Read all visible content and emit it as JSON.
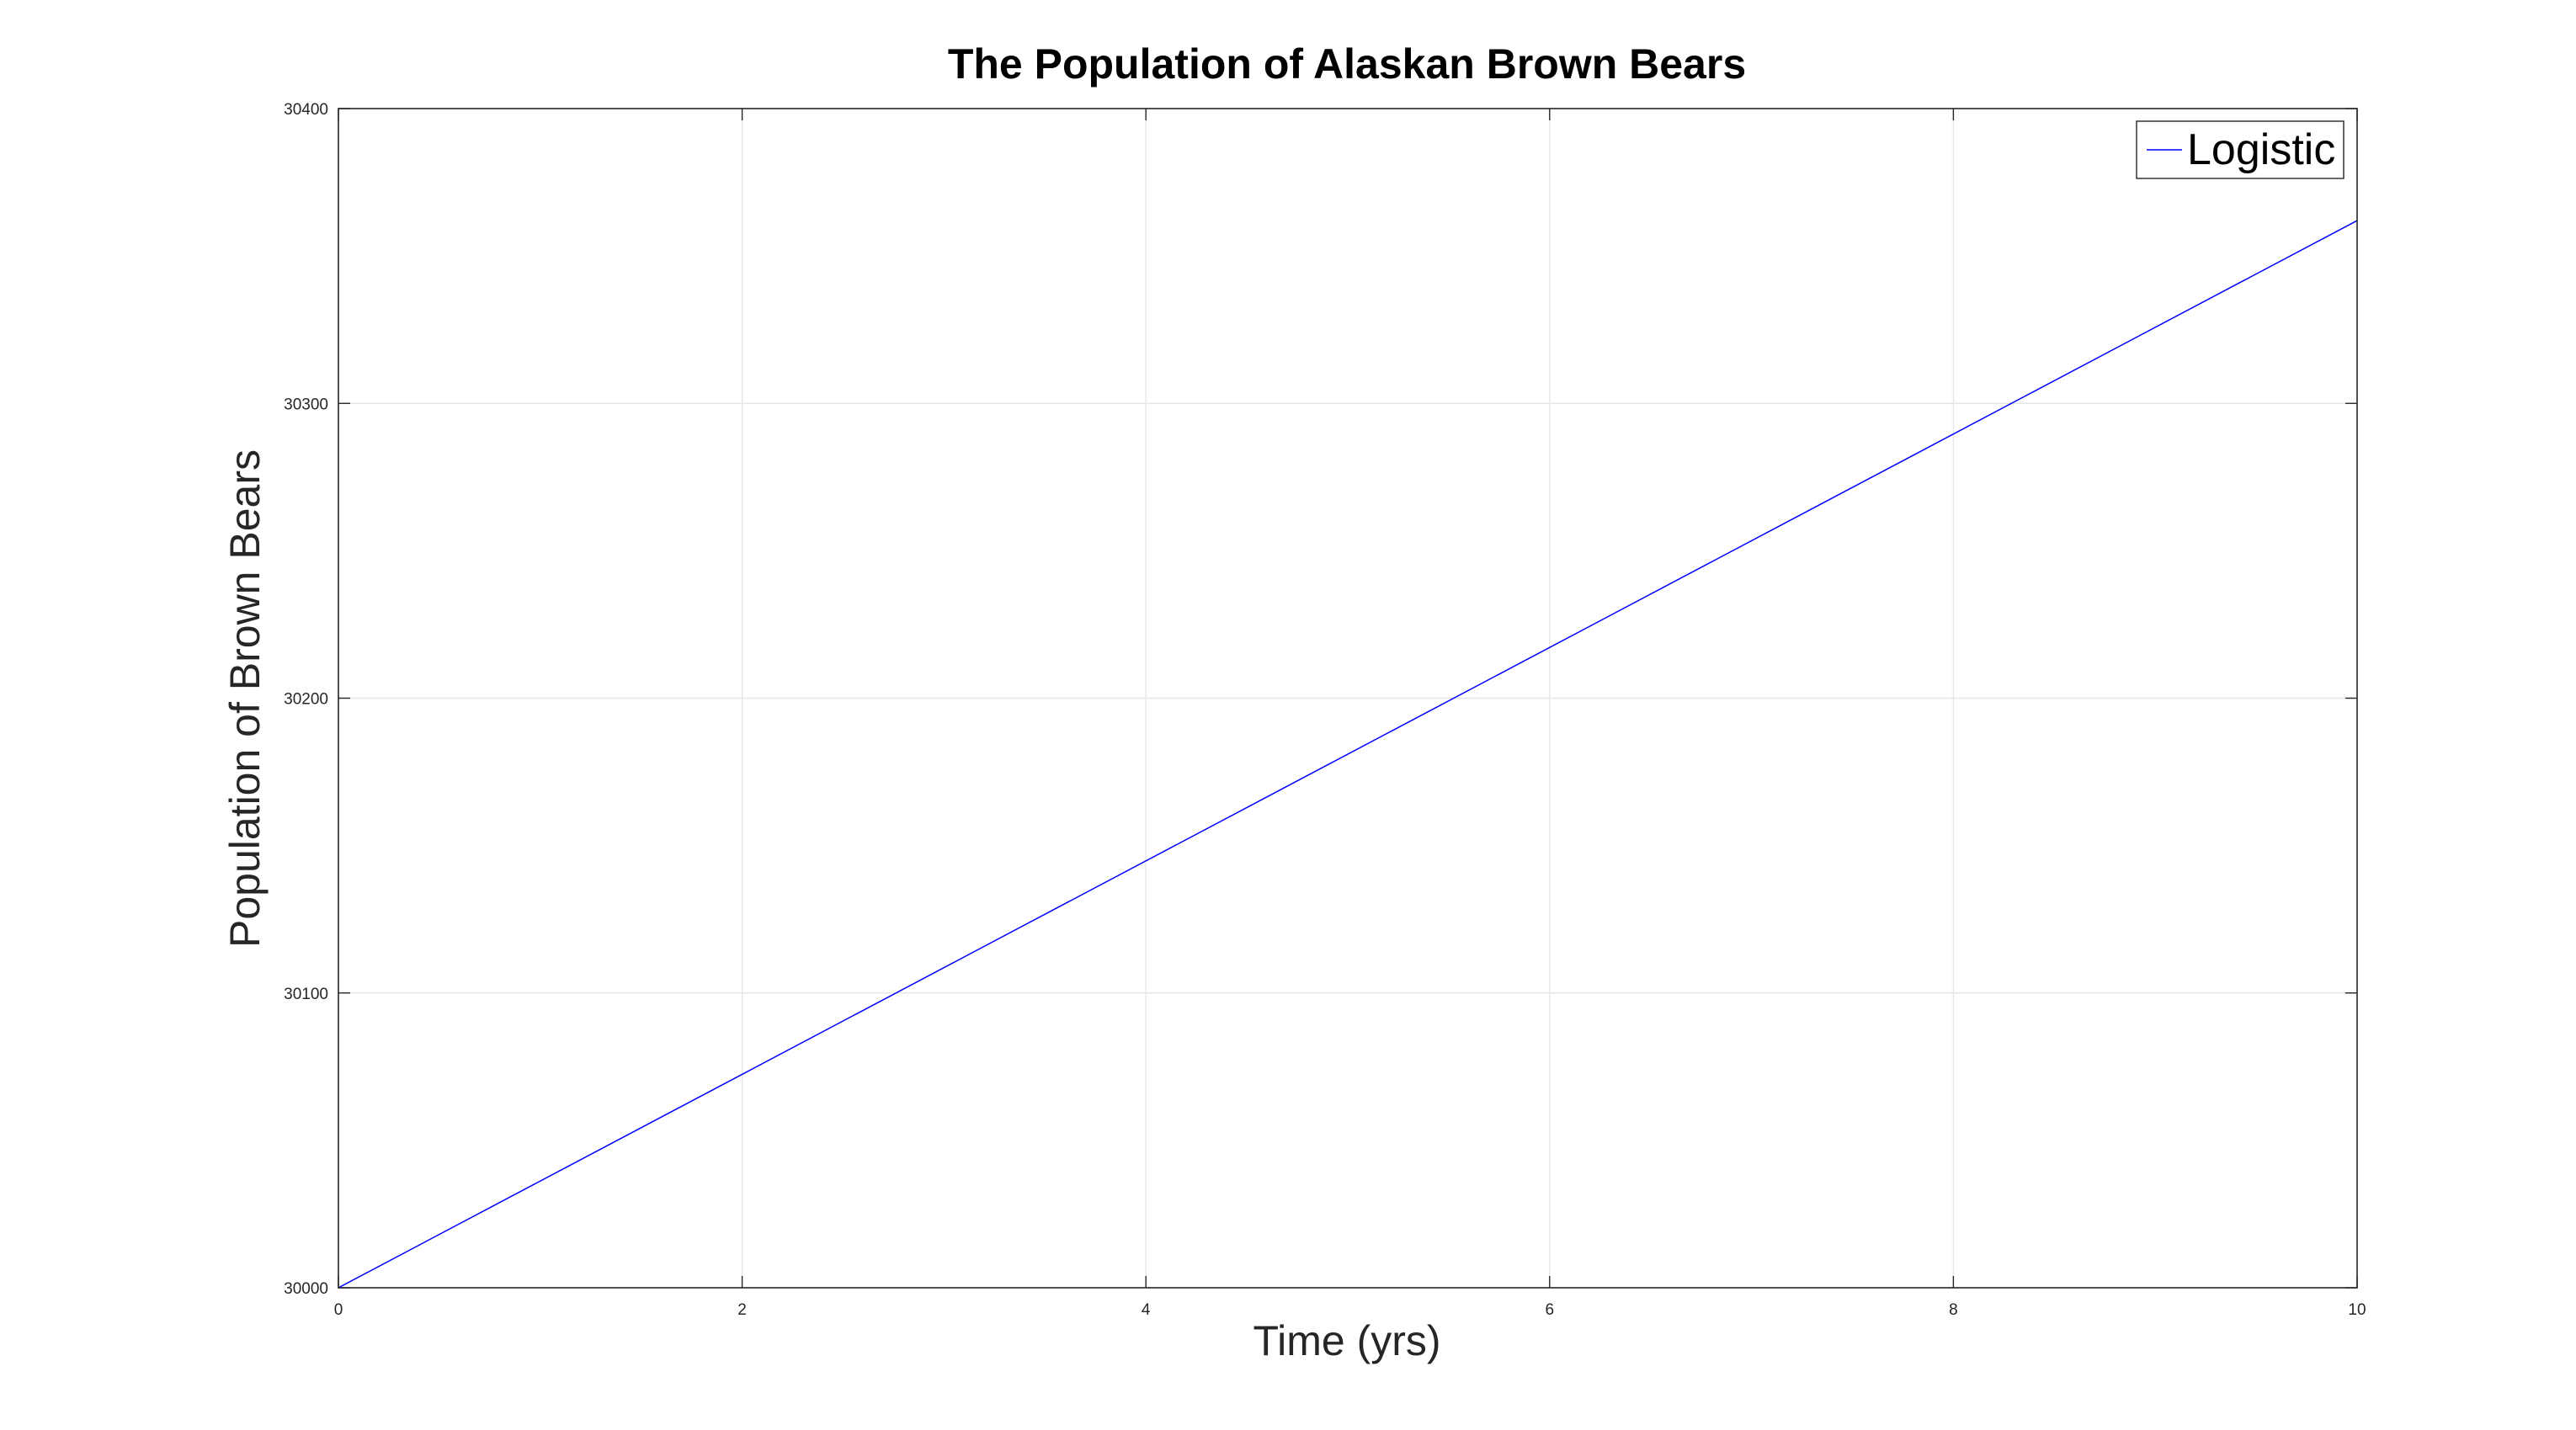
{
  "chart_data": {
    "type": "line",
    "title": "The Population of Alaskan Brown Bears",
    "xlabel": "Time (yrs)",
    "ylabel": "Population of Brown Bears",
    "xlim": [
      0,
      10
    ],
    "ylim": [
      30000,
      30400
    ],
    "xticks": [
      0,
      2,
      4,
      6,
      8,
      10
    ],
    "yticks": [
      30000,
      30100,
      30200,
      30300,
      30400
    ],
    "grid": true,
    "legend_position": "top-right",
    "series": [
      {
        "name": "Logistic",
        "color": "#0000ff",
        "x": [
          0,
          10
        ],
        "y": [
          30000,
          30362
        ]
      }
    ]
  },
  "colors": {
    "axis": "#262626",
    "grid": "#e6e6e6",
    "background": "#ffffff"
  }
}
